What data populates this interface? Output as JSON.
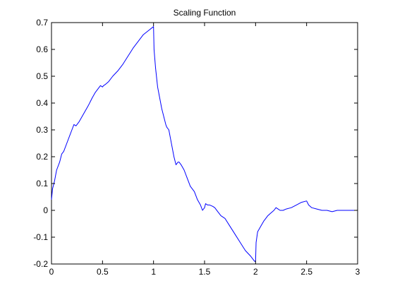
{
  "chart_data": {
    "type": "line",
    "title": "Scaling Function",
    "xlabel": "",
    "ylabel": "",
    "xlim": [
      0,
      3
    ],
    "ylim": [
      -0.2,
      0.7
    ],
    "grid": false,
    "x_ticks": [
      0,
      0.5,
      1,
      1.5,
      2,
      2.5,
      3
    ],
    "x_tick_labels": [
      "0",
      "0.5",
      "1",
      "1.5",
      "2",
      "2.5",
      "3"
    ],
    "y_ticks": [
      -0.2,
      -0.1,
      0,
      0.1,
      0.2,
      0.3,
      0.4,
      0.5,
      0.6,
      0.7
    ],
    "y_tick_labels": [
      "-0.2",
      "-0.1",
      "0",
      "0.1",
      "0.2",
      "0.3",
      "0.4",
      "0.5",
      "0.6",
      "0.7"
    ],
    "series": [
      {
        "color": "#0000ff",
        "x": [
          0,
          0.01,
          0.03,
          0.05,
          0.08,
          0.1,
          0.12,
          0.15,
          0.18,
          0.2,
          0.22,
          0.24,
          0.25,
          0.27,
          0.3,
          0.33,
          0.36,
          0.4,
          0.43,
          0.46,
          0.48,
          0.5,
          0.51,
          0.53,
          0.56,
          0.6,
          0.65,
          0.7,
          0.75,
          0.8,
          0.85,
          0.9,
          0.95,
          1.0,
          1.005,
          1.02,
          1.04,
          1.06,
          1.08,
          1.1,
          1.12,
          1.13,
          1.15,
          1.17,
          1.2,
          1.22,
          1.24,
          1.25,
          1.27,
          1.3,
          1.33,
          1.36,
          1.4,
          1.43,
          1.46,
          1.48,
          1.5,
          1.51,
          1.53,
          1.55,
          1.58,
          1.6,
          1.63,
          1.66,
          1.7,
          1.75,
          1.8,
          1.85,
          1.9,
          1.95,
          1.99,
          2.0,
          2.005,
          2.02,
          2.05,
          2.08,
          2.1,
          2.12,
          2.15,
          2.18,
          2.2,
          2.22,
          2.24,
          2.25,
          2.27,
          2.3,
          2.35,
          2.4,
          2.45,
          2.5,
          2.52,
          2.55,
          2.6,
          2.65,
          2.7,
          2.75,
          2.8,
          2.85,
          2.9,
          2.95,
          3.0
        ],
        "y": [
          0.04,
          0.08,
          0.11,
          0.15,
          0.18,
          0.21,
          0.22,
          0.25,
          0.28,
          0.3,
          0.32,
          0.315,
          0.32,
          0.33,
          0.35,
          0.37,
          0.39,
          0.42,
          0.44,
          0.455,
          0.465,
          0.46,
          0.465,
          0.47,
          0.48,
          0.5,
          0.52,
          0.545,
          0.575,
          0.605,
          0.63,
          0.655,
          0.67,
          0.685,
          0.6,
          0.53,
          0.46,
          0.42,
          0.38,
          0.35,
          0.32,
          0.31,
          0.3,
          0.26,
          0.2,
          0.17,
          0.18,
          0.18,
          0.17,
          0.15,
          0.12,
          0.09,
          0.07,
          0.04,
          0.02,
          0.0,
          0.01,
          0.025,
          0.02,
          0.02,
          0.015,
          0.01,
          -0.005,
          -0.02,
          -0.03,
          -0.06,
          -0.09,
          -0.12,
          -0.15,
          -0.17,
          -0.19,
          -0.19,
          -0.12,
          -0.08,
          -0.06,
          -0.04,
          -0.03,
          -0.02,
          -0.01,
          0.0,
          0.01,
          0.005,
          0.0,
          0.0,
          0.0,
          0.005,
          0.01,
          0.02,
          0.03,
          0.035,
          0.02,
          0.01,
          0.005,
          0.0,
          0.0,
          -0.005,
          0.0,
          0.0,
          0.0,
          0.0,
          0.0
        ]
      }
    ]
  }
}
